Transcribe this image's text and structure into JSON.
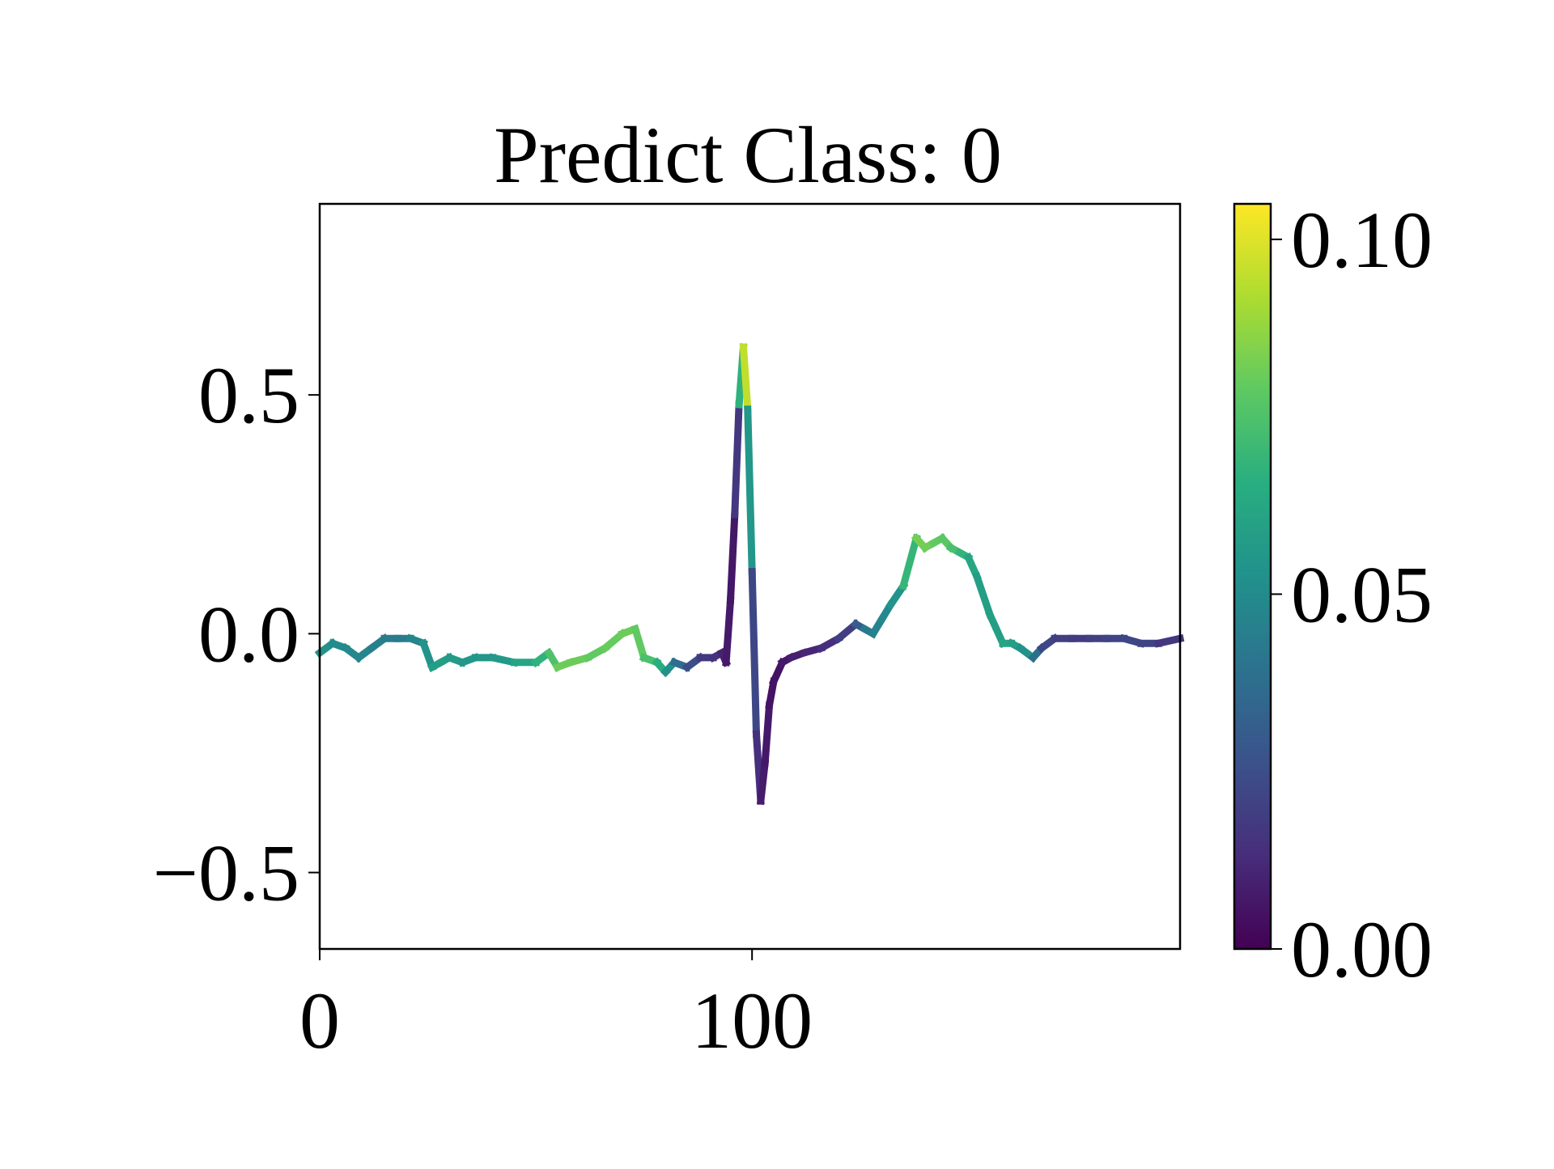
{
  "chart_data": {
    "type": "line",
    "title": "Predict Class: 0",
    "xlabel": "",
    "ylabel": "",
    "xlim": [
      0,
      199
    ],
    "ylim": [
      -0.66,
      0.9
    ],
    "x_ticks": [
      0,
      100
    ],
    "x_tick_labels": [
      "0",
      "100"
    ],
    "y_ticks": [
      -0.5,
      0.0,
      0.5
    ],
    "y_tick_labels": [
      "−0.5",
      "0.0",
      "0.5"
    ],
    "grid": false,
    "legend": "none",
    "colormap": "viridis",
    "colorbar": {
      "min": 0.0,
      "max": 0.105,
      "ticks": [
        0.0,
        0.05,
        0.1
      ],
      "tick_labels": [
        "0.00",
        "0.05",
        "0.10"
      ]
    },
    "series": [
      {
        "x": [
          0,
          3,
          6,
          9,
          12,
          15,
          18,
          21,
          24,
          26,
          28,
          30,
          33,
          36,
          40,
          45,
          50,
          53,
          55,
          58,
          62,
          66,
          70,
          73,
          75,
          78,
          80,
          82,
          85,
          88,
          91,
          93,
          94,
          95,
          96,
          97,
          98,
          99,
          100,
          101,
          102,
          103,
          104,
          105,
          107,
          109,
          112,
          116,
          120,
          124,
          126,
          128,
          130,
          132,
          135,
          138,
          140,
          142,
          144,
          146,
          148,
          150,
          152,
          155,
          158,
          160,
          162,
          165,
          167,
          170,
          174,
          178,
          182,
          186,
          190,
          194,
          199
        ],
        "y": [
          -0.04,
          -0.02,
          -0.03,
          -0.05,
          -0.03,
          -0.01,
          -0.01,
          -0.01,
          -0.02,
          -0.07,
          -0.06,
          -0.05,
          -0.06,
          -0.05,
          -0.05,
          -0.06,
          -0.06,
          -0.04,
          -0.07,
          -0.06,
          -0.05,
          -0.03,
          0.0,
          0.01,
          -0.05,
          -0.06,
          -0.08,
          -0.06,
          -0.07,
          -0.05,
          -0.05,
          -0.04,
          -0.06,
          0.07,
          0.25,
          0.48,
          0.6,
          0.47,
          0.13,
          -0.21,
          -0.35,
          -0.27,
          -0.15,
          -0.1,
          -0.06,
          -0.05,
          -0.04,
          -0.03,
          -0.01,
          0.02,
          0.01,
          0.0,
          0.03,
          0.06,
          0.1,
          0.2,
          0.18,
          0.19,
          0.2,
          0.18,
          0.17,
          0.16,
          0.12,
          0.04,
          -0.02,
          -0.02,
          -0.03,
          -0.05,
          -0.03,
          -0.01,
          -0.01,
          -0.01,
          -0.01,
          -0.01,
          -0.02,
          -0.02,
          -0.01
        ],
        "attribution": [
          0.055,
          0.052,
          0.048,
          0.05,
          0.046,
          0.044,
          0.042,
          0.045,
          0.05,
          0.058,
          0.06,
          0.058,
          0.056,
          0.055,
          0.055,
          0.058,
          0.065,
          0.07,
          0.08,
          0.082,
          0.08,
          0.078,
          0.082,
          0.08,
          0.078,
          0.07,
          0.06,
          0.045,
          0.03,
          0.02,
          0.015,
          0.015,
          0.005,
          0.01,
          0.003,
          0.03,
          0.105,
          0.085,
          0.025,
          0.02,
          0.008,
          0.008,
          0.006,
          0.005,
          0.006,
          0.008,
          0.01,
          0.012,
          0.016,
          0.022,
          0.04,
          0.045,
          0.048,
          0.05,
          0.058,
          0.08,
          0.085,
          0.078,
          0.08,
          0.076,
          0.072,
          0.065,
          0.06,
          0.058,
          0.06,
          0.062,
          0.055,
          0.052,
          0.025,
          0.02,
          0.018,
          0.018,
          0.022,
          0.02,
          0.024,
          0.018,
          0.015
        ]
      }
    ]
  }
}
